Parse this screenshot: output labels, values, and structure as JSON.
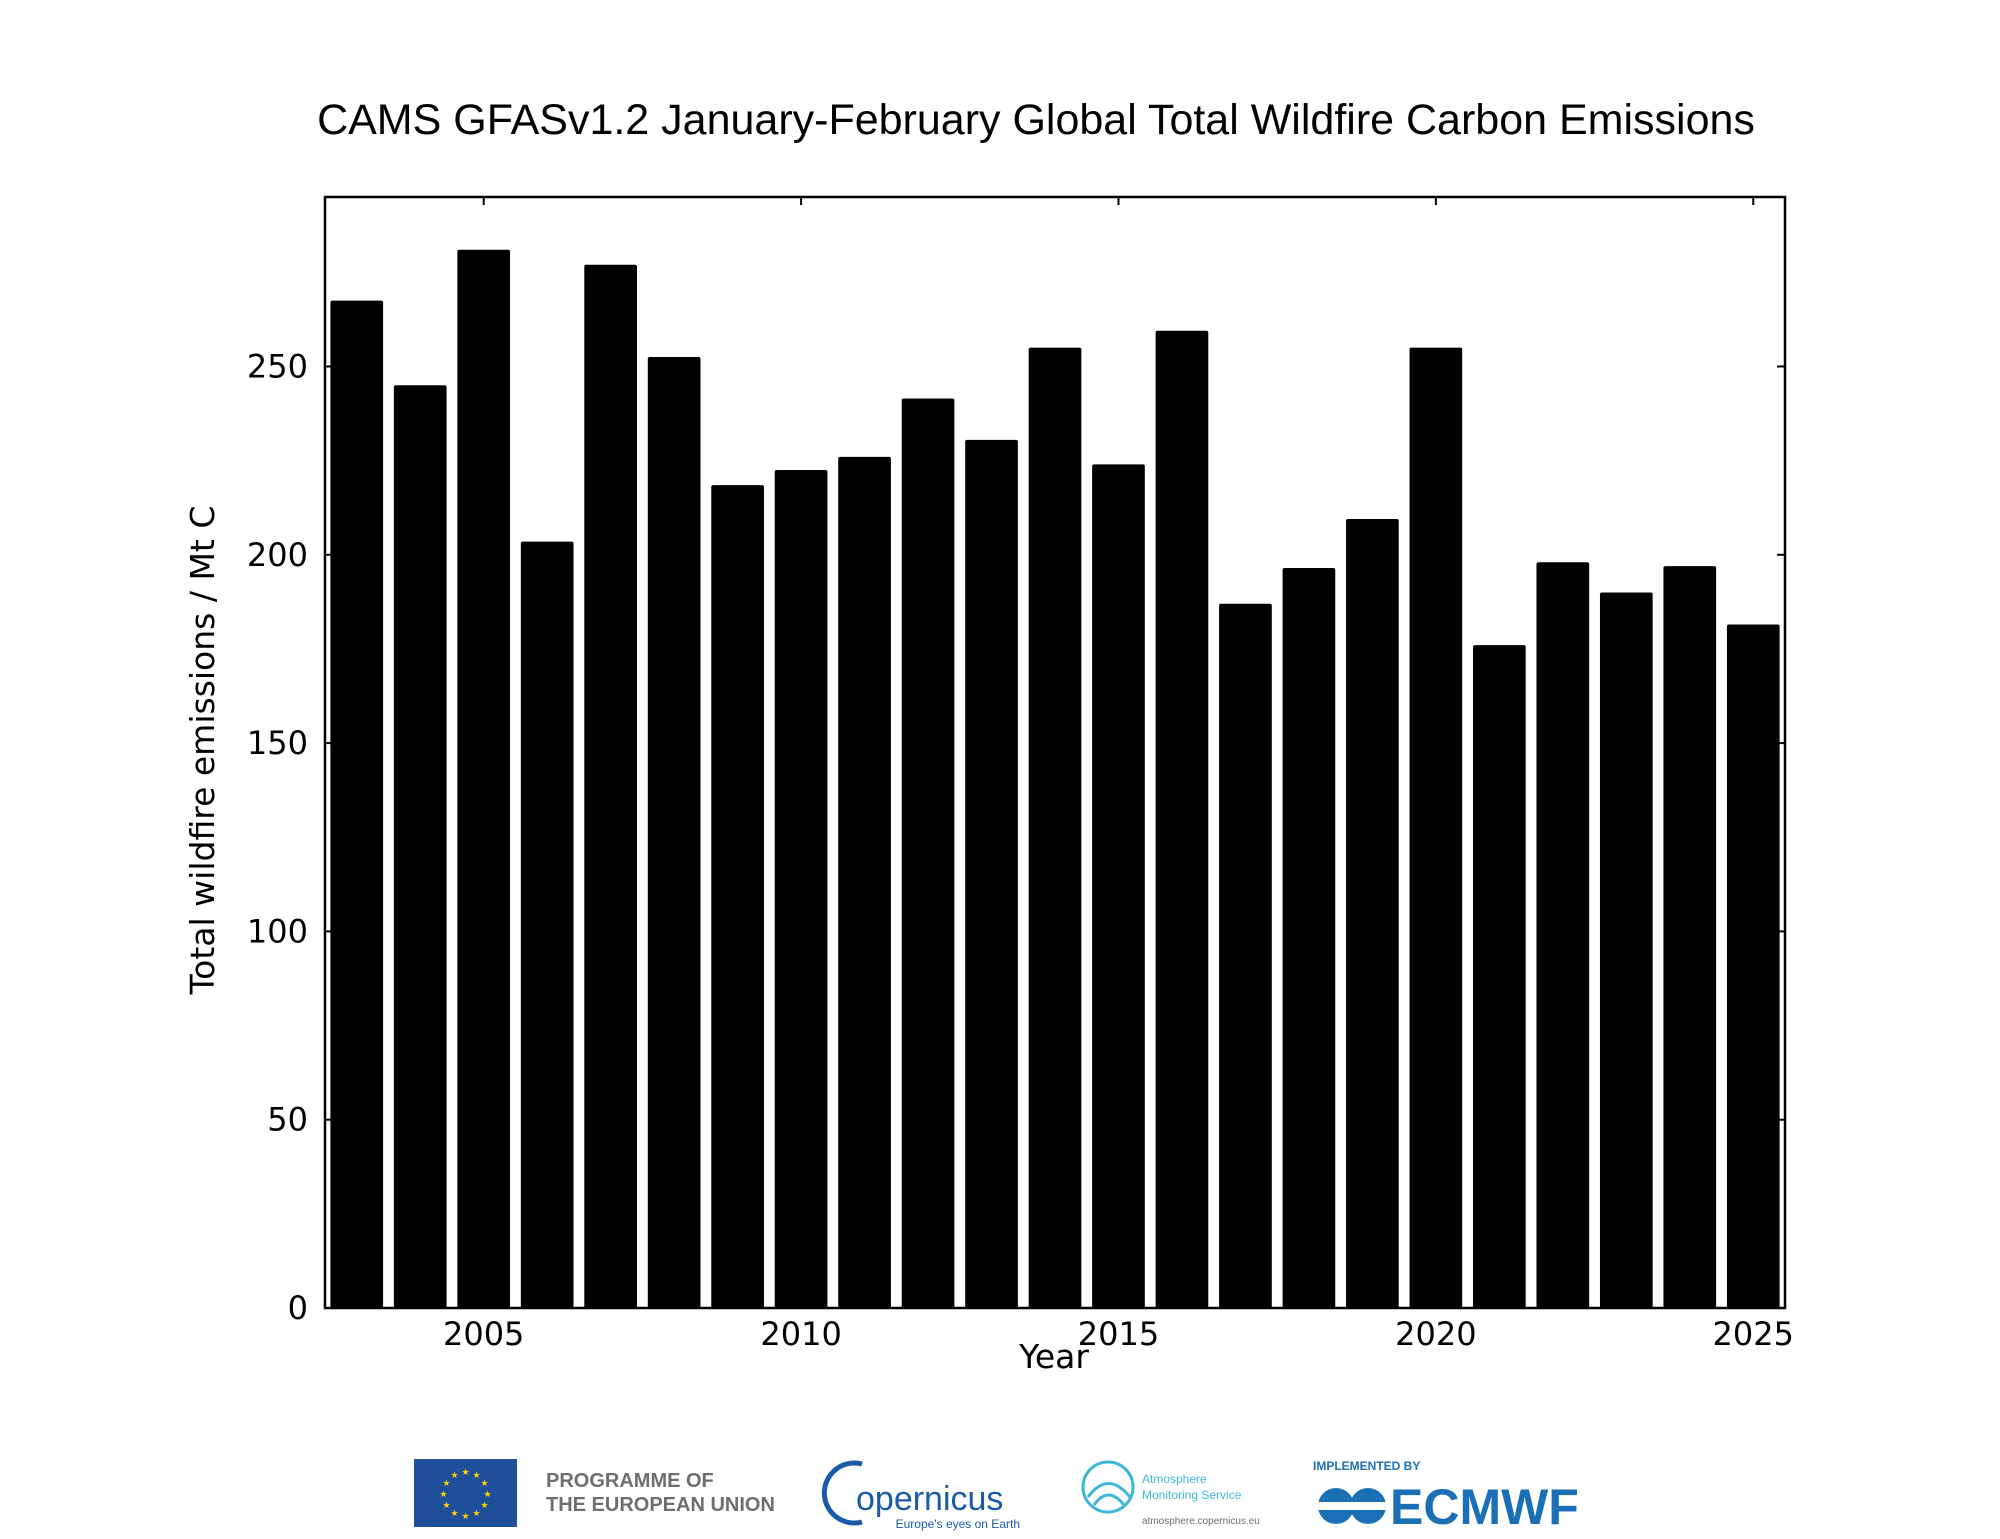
{
  "chart_data": {
    "type": "bar",
    "title": "CAMS GFASv1.2 January-February Global Total Wildfire Carbon Emissions",
    "xlabel": "Year",
    "ylabel": "Total wildfire emissions / Mt C",
    "categories": [
      2003,
      2004,
      2005,
      2006,
      2007,
      2008,
      2009,
      2010,
      2011,
      2012,
      2013,
      2014,
      2015,
      2016,
      2017,
      2018,
      2019,
      2020,
      2021,
      2022,
      2023,
      2024,
      2025
    ],
    "values": [
      267.5,
      245,
      281,
      203.5,
      277,
      252.5,
      218.5,
      222.5,
      226,
      241.5,
      230.5,
      255,
      224,
      259.5,
      187,
      196.5,
      209.5,
      255,
      176,
      198,
      190,
      197,
      181.5
    ],
    "xlim": [
      2002.5,
      2025.5
    ],
    "ylim": [
      0,
      295
    ],
    "xticks": [
      "2005",
      "2010",
      "2015",
      "2020",
      "2025"
    ],
    "yticks": [
      "0",
      "50",
      "100",
      "150",
      "200",
      "250"
    ],
    "grid": false,
    "bar_color": "#000000"
  },
  "footer": {
    "eu_text_line1": "PROGRAMME OF",
    "eu_text_line2": "THE EUROPEAN UNION",
    "copernicus_name": "opernicus",
    "copernicus_tagline": "Europe's eyes on Earth",
    "cams_line1": "Atmosphere",
    "cams_line2": "Monitoring Service",
    "cams_url": "atmosphere.copernicus.eu",
    "ecmwf_implemented": "IMPLEMENTED BY",
    "ecmwf_name": "ECMWF",
    "colors": {
      "eu_blue": "#1f4e9b",
      "eu_star": "#ffd200",
      "copernicus_blue": "#1a5aa6",
      "cams_teal": "#3fb6d9",
      "ecmwf_blue": "#1b6fb5",
      "grey_text": "#6d6e70"
    }
  }
}
